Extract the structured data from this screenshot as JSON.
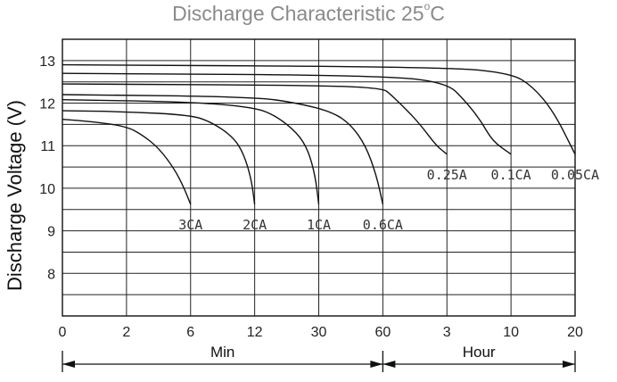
{
  "chart_data": {
    "type": "line",
    "title": "Discharge Characteristic 25",
    "title_unit": "°C",
    "title_degree_mark": "o",
    "title_suffix": "C",
    "ylabel": "Discharge Voltage (V)",
    "ylim": [
      7,
      13.5
    ],
    "y_ticks": [
      "13",
      "12",
      "11",
      "10",
      "9",
      "8"
    ],
    "y_tick_values": [
      13,
      12,
      11,
      10,
      9,
      8
    ],
    "x_ticks": [
      "0",
      "2",
      "6",
      "12",
      "30",
      "60",
      "3",
      "10",
      "20"
    ],
    "x_scale": "piecewise (minutes then hours, evenly spaced ticks)",
    "x_segments": [
      {
        "label": "Min",
        "from": "0",
        "to": "60"
      },
      {
        "label": "Hour",
        "from": "60",
        "to": "20"
      }
    ],
    "grid": true,
    "series": [
      {
        "name": "3CA",
        "points": [
          [
            0,
            11.62
          ],
          [
            1,
            11.56
          ],
          [
            2,
            11.45
          ],
          [
            3,
            11.25
          ],
          [
            4,
            10.95
          ],
          [
            5,
            10.45
          ],
          [
            5.6,
            10.0
          ],
          [
            6,
            9.62
          ]
        ]
      },
      {
        "name": "2CA",
        "points": [
          [
            0,
            11.82
          ],
          [
            2,
            11.8
          ],
          [
            6,
            11.72
          ],
          [
            8,
            11.55
          ],
          [
            10,
            11.2
          ],
          [
            11,
            10.8
          ],
          [
            11.7,
            10.2
          ],
          [
            12,
            9.62
          ]
        ]
      },
      {
        "name": "1CA",
        "points": [
          [
            0,
            12.08
          ],
          [
            6,
            12.03
          ],
          [
            12,
            11.9
          ],
          [
            18,
            11.7
          ],
          [
            24,
            11.3
          ],
          [
            27,
            10.9
          ],
          [
            29,
            10.3
          ],
          [
            30,
            9.62
          ]
        ]
      },
      {
        "name": "0.6CA",
        "points": [
          [
            0,
            12.2
          ],
          [
            12,
            12.15
          ],
          [
            24,
            12.0
          ],
          [
            36,
            11.8
          ],
          [
            45,
            11.5
          ],
          [
            52,
            11.0
          ],
          [
            57,
            10.3
          ],
          [
            60,
            9.62
          ]
        ]
      },
      {
        "name": "0.25A",
        "points": [
          [
            0,
            12.45
          ],
          [
            30,
            12.42
          ],
          [
            60,
            12.35
          ],
          [
            75,
            12.2
          ],
          [
            100,
            11.9
          ],
          [
            130,
            11.5
          ],
          [
            160,
            11.0
          ],
          [
            180,
            10.8
          ]
        ]
      },
      {
        "name": "0.1CA",
        "points": [
          [
            0,
            12.7
          ],
          [
            60,
            12.65
          ],
          [
            180,
            12.48
          ],
          [
            300,
            12.05
          ],
          [
            400,
            11.6
          ],
          [
            480,
            11.1
          ],
          [
            600,
            10.8
          ]
        ]
      },
      {
        "name": "0.05CA",
        "points": [
          [
            0,
            12.9
          ],
          [
            180,
            12.85
          ],
          [
            600,
            12.7
          ],
          [
            800,
            12.4
          ],
          [
            1000,
            11.8
          ],
          [
            1200,
            10.8
          ]
        ]
      }
    ],
    "series_units": "x in minutes from start of discharge, y in volts"
  },
  "axis_arrows": {
    "min_label": "Min",
    "hour_label": "Hour"
  }
}
